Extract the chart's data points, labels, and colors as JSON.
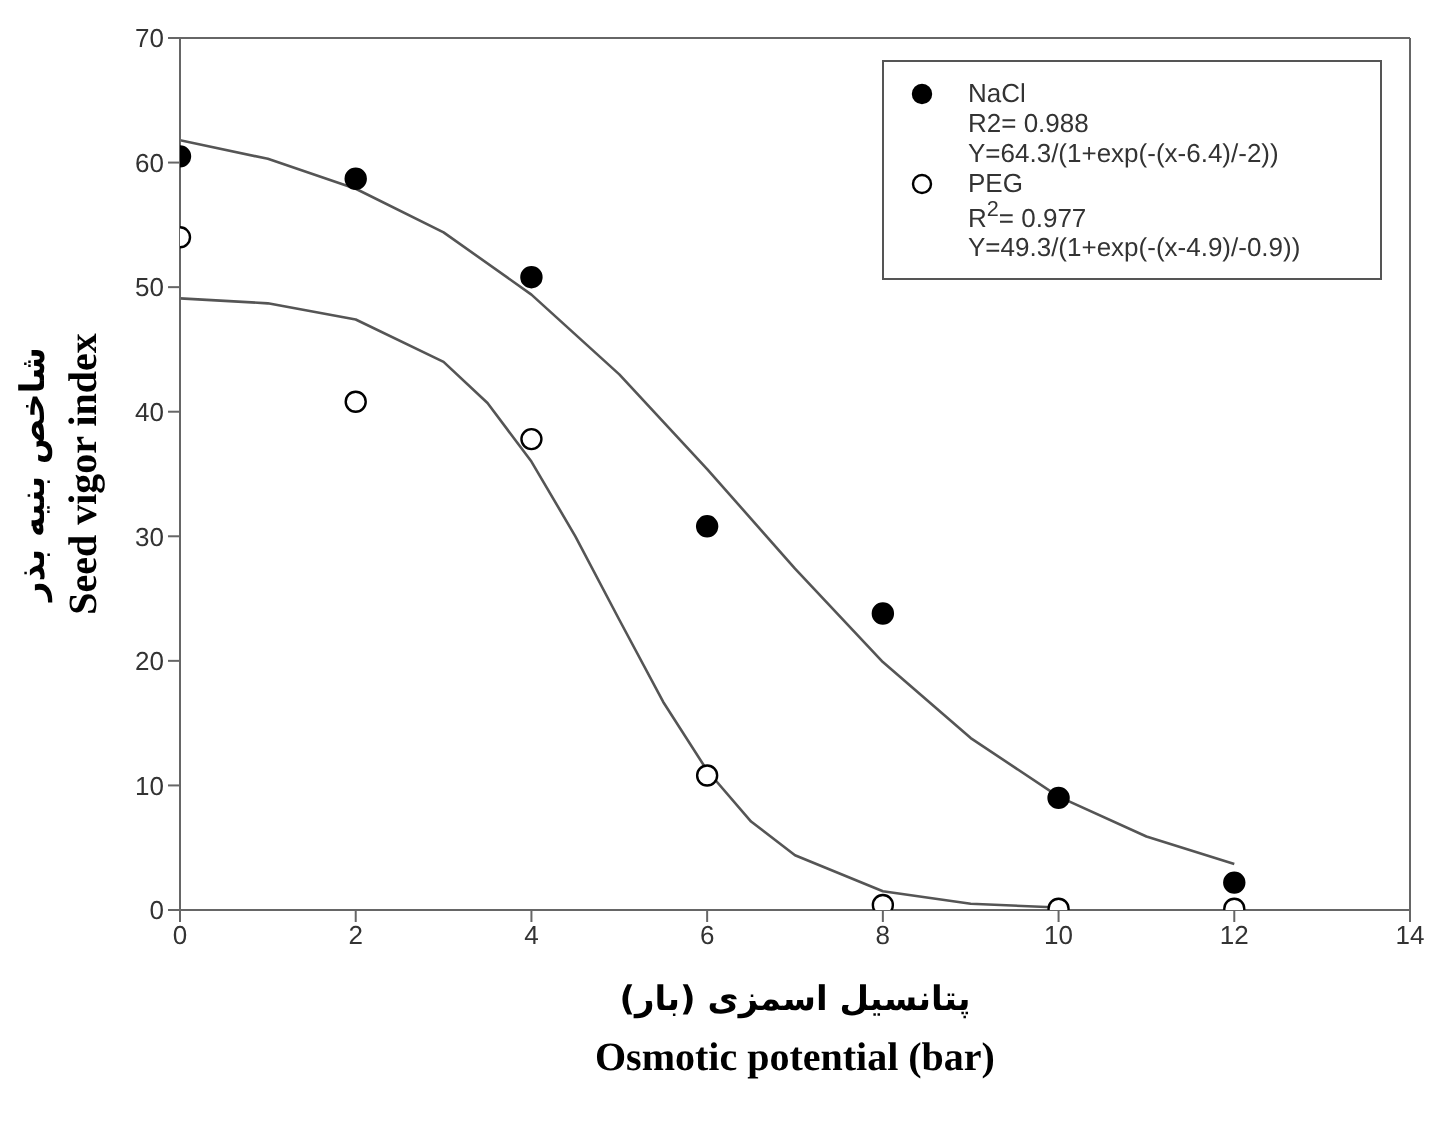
{
  "chart_data": {
    "type": "scatter",
    "xlabel": "پتانسیل اسمزی (بار)\nOsmotic potential (bar)",
    "ylabel": "شاخص بنیه بذر\nSeed vigor index",
    "x": [
      0,
      2,
      4,
      6,
      8,
      10,
      12
    ],
    "series": [
      {
        "name": "NaCl",
        "color": "#000000",
        "values": [
          60.5,
          58.7,
          50.8,
          30.8,
          23.8,
          9,
          2.2
        ]
      },
      {
        "name": "PEG",
        "color": "#ffffff",
        "values": [
          54,
          40.8,
          37.8,
          10.8,
          0.4,
          0.1,
          0.1
        ]
      },
      {
        "type": "line",
        "marker": "none",
        "color": "#555555",
        "x": [
          0,
          1,
          2,
          3,
          4,
          5,
          6,
          7,
          8,
          9,
          10,
          11,
          12
        ],
        "values": [
          61.8,
          60.3,
          57.9,
          54.4,
          49.4,
          43.0,
          35.4,
          27.4,
          19.9,
          13.8,
          9.1,
          5.9,
          3.7
        ]
      },
      {
        "type": "line",
        "marker": "none",
        "color": "#555555",
        "x": [
          0,
          1,
          2,
          3,
          3.5,
          4,
          4.5,
          5,
          5.5,
          6,
          6.5,
          7,
          8,
          9,
          10
        ],
        "values": [
          49.1,
          48.7,
          47.4,
          44.0,
          40.7,
          36.0,
          30.0,
          23.3,
          16.7,
          11.2,
          7.1,
          4.4,
          1.5,
          0.5,
          0.2
        ]
      }
    ],
    "annotations": [
      "R2= 0.988",
      "Y=64.3/(1+exp(-(x-6.4)/-2))",
      "R$^{2}$= 0.977",
      "Y=49.3/(1+exp(-(x-4.9)/-0.9))"
    ],
    "xlim": [
      0,
      14
    ],
    "xticks": [
      0,
      2,
      4,
      6,
      8,
      10,
      12,
      14
    ],
    "ylim": [
      0,
      70
    ],
    "yticks": [
      0,
      10,
      20,
      30,
      40,
      50,
      60,
      70
    ],
    "marker": "circle",
    "grid": false,
    "legend": "top right"
  }
}
